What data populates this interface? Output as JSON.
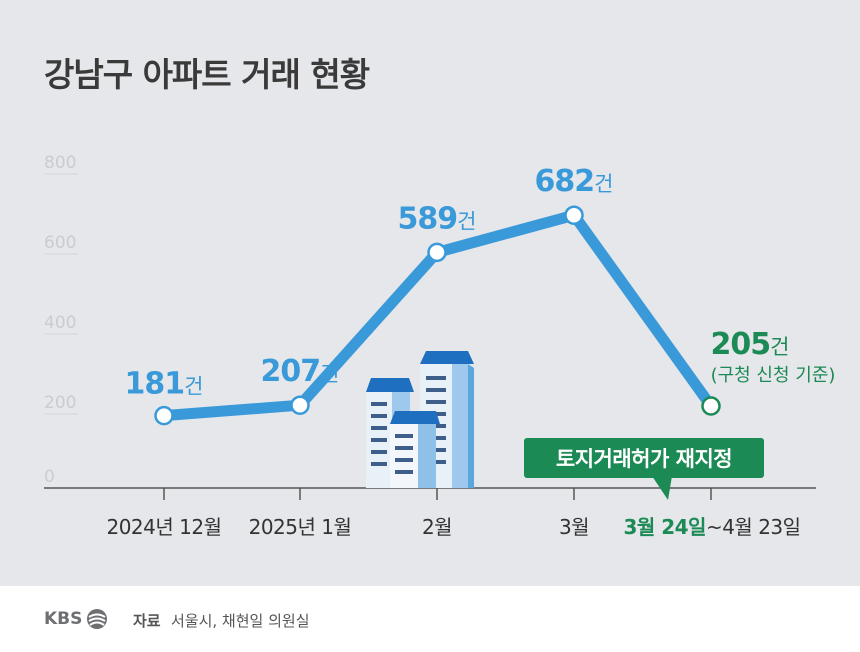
{
  "title": "강남구 아파트 거래 현황",
  "chart_data": {
    "type": "line",
    "title": "강남구 아파트 거래 현황",
    "categories": [
      "2024년 12월",
      "2025년 1월",
      "2월",
      "3월",
      "3월 24일~4월 23일"
    ],
    "values": [
      181,
      207,
      589,
      682,
      205
    ],
    "data_labels": [
      "181",
      "207",
      "589",
      "682",
      "205"
    ],
    "unit": "건",
    "last_point_note": "(구청 신청 기준)",
    "ylim": [
      0,
      800
    ],
    "yticks": [
      "0",
      "200",
      "400",
      "600",
      "800"
    ],
    "grid": false,
    "annotation": "토지거래허가 재지정",
    "period_label_start": "3월 24일",
    "period_label_rest": "~4월 23일",
    "colors": {
      "line": "#3a9ad9",
      "highlight": "#1c8a55",
      "background": "#e5e7ea",
      "axis": "#555555"
    }
  },
  "footer": {
    "logo": "KBS",
    "source_label": "자료",
    "source_text": "서울시, 채현일 의원실"
  }
}
